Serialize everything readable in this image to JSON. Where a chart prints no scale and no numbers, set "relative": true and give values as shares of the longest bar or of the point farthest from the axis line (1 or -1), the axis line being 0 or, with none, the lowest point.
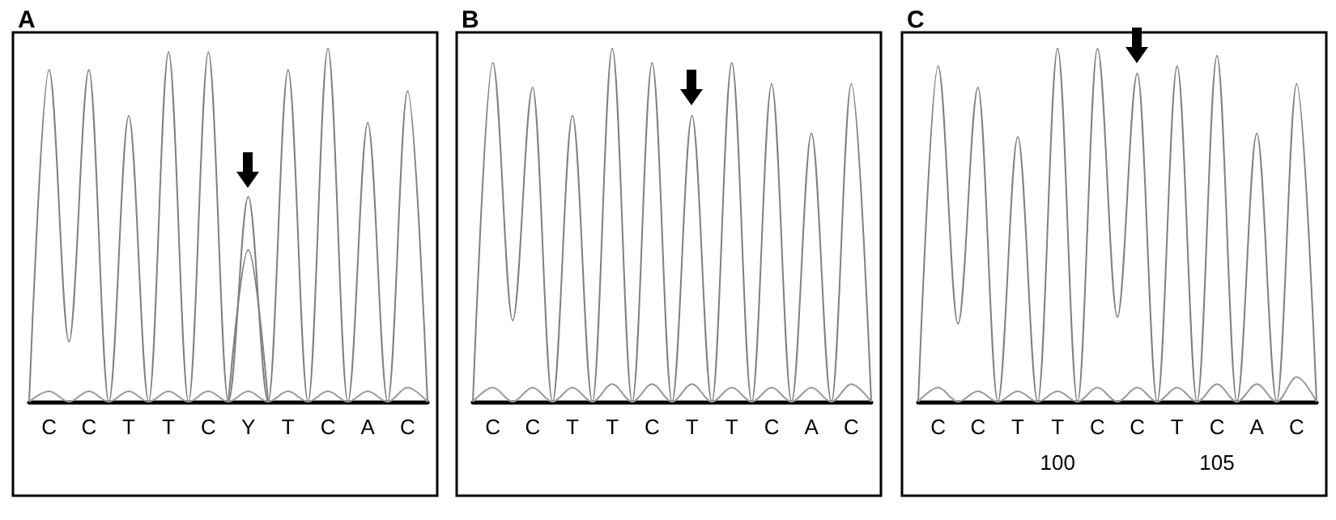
{
  "chart_data": [
    {
      "type": "line",
      "title": "A",
      "relative": true,
      "grid": false,
      "marker": "none",
      "categories": [
        null,
        "C",
        null,
        "C",
        null,
        "T",
        null,
        "T",
        null,
        "C",
        null,
        "Y",
        null,
        "T",
        null,
        "C",
        null,
        "A",
        null,
        "C",
        null
      ],
      "series": [
        {
          "color": "#808080",
          "values": [
            0,
            0.94,
            0.17,
            0.94,
            0,
            0.81,
            0,
            0.99,
            0,
            0.99,
            0,
            0.58,
            0,
            0.94,
            0,
            1.0,
            0,
            0.79,
            0,
            0.88,
            0
          ]
        },
        {
          "color": "#808080",
          "values": [
            null,
            null,
            null,
            null,
            null,
            null,
            null,
            null,
            null,
            null,
            0,
            0.43,
            0,
            null,
            null,
            null,
            null,
            null,
            null,
            null,
            null
          ]
        },
        {
          "color": "#9a9a9a",
          "values": [
            0,
            0.03,
            0,
            0.03,
            0,
            0.03,
            0,
            0.03,
            0,
            0.03,
            0,
            0.03,
            0,
            0.03,
            0,
            0.03,
            0,
            0.03,
            0,
            0.04,
            0
          ]
        }
      ]
    },
    {
      "type": "line",
      "title": "B",
      "relative": true,
      "grid": false,
      "marker": "none",
      "categories": [
        null,
        "C",
        null,
        "C",
        null,
        "T",
        null,
        "T",
        null,
        "C",
        null,
        "T",
        null,
        "T",
        null,
        "C",
        null,
        "A",
        null,
        "C",
        null
      ],
      "series": [
        {
          "color": "#808080",
          "values": [
            0,
            0.96,
            0.23,
            0.89,
            0,
            0.81,
            0,
            1.0,
            0,
            0.96,
            0,
            0.81,
            0,
            0.96,
            0,
            0.9,
            0,
            0.76,
            0,
            0.9,
            0
          ]
        },
        {
          "color": "#9a9a9a",
          "values": [
            0,
            0.04,
            0,
            0.04,
            0,
            0.04,
            0,
            0.05,
            0,
            0.05,
            0,
            0.05,
            0,
            0.04,
            0,
            0.04,
            0,
            0.04,
            0,
            0.05,
            0
          ]
        }
      ]
    },
    {
      "type": "line",
      "title": "C",
      "relative": true,
      "grid": false,
      "marker": "none",
      "categories": [
        null,
        "C",
        null,
        "C",
        null,
        "T",
        null,
        "T",
        null,
        "C",
        null,
        "C",
        null,
        "T",
        null,
        "C",
        null,
        "A",
        null,
        "C",
        null
      ],
      "annotations": [
        "100",
        "105"
      ],
      "series": [
        {
          "color": "#808080",
          "values": [
            0,
            0.95,
            0.22,
            0.89,
            0,
            0.75,
            0,
            1.0,
            0,
            1.0,
            0.24,
            0.93,
            0,
            0.95,
            0,
            0.98,
            0,
            0.76,
            0,
            0.9,
            0
          ]
        },
        {
          "color": "#9a9a9a",
          "values": [
            0,
            0.04,
            0,
            0.03,
            0,
            0.03,
            0,
            0.03,
            0,
            0.04,
            0,
            0.04,
            0,
            0.04,
            0,
            0.05,
            0,
            0.05,
            0,
            0.07,
            0
          ]
        }
      ]
    }
  ]
}
